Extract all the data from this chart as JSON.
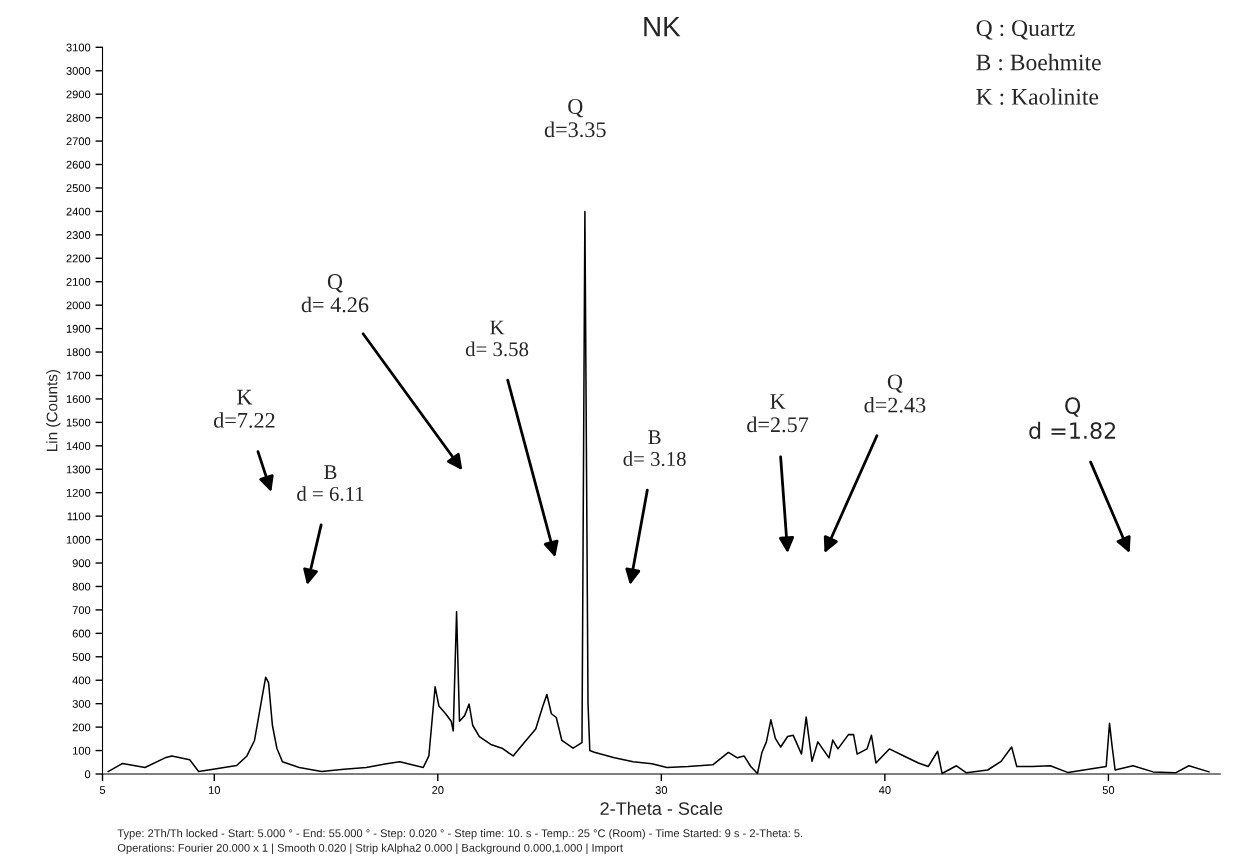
{
  "chart_data": {
    "type": "line",
    "title": "NK",
    "xlabel": "2-Theta - Scale",
    "ylabel": "Lin (Counts)",
    "xlim": [
      5,
      55
    ],
    "xticks": [
      5,
      10,
      20,
      30,
      40,
      50
    ],
    "ylim": [
      0,
      3100
    ],
    "yticks": [
      0,
      100,
      200,
      300,
      400,
      500,
      600,
      700,
      800,
      900,
      1000,
      1100,
      1200,
      1300,
      1400,
      1500,
      1600,
      1700,
      1800,
      1900,
      2000,
      2100,
      2200,
      2300,
      2400,
      2500,
      2600,
      2700,
      2800,
      2900,
      3000,
      3100
    ],
    "grid": false,
    "marker": "none",
    "line_style": "solid",
    "series": [
      {
        "color": "#000000",
        "x": [
          5.25,
          5.9,
          6.9,
          7.8,
          8.1,
          8.9,
          9.3,
          9.95,
          11.0,
          11.46,
          11.8,
          12.13,
          12.3,
          12.43,
          12.6,
          12.8,
          13.05,
          13.8,
          14.8,
          15.8,
          16.8,
          17.7,
          18.3,
          19.35,
          19.6,
          19.77,
          19.88,
          20.05,
          20.35,
          20.6,
          20.69,
          20.84,
          20.97,
          21.2,
          21.4,
          21.56,
          21.86,
          22.37,
          22.87,
          23.37,
          23.87,
          24.38,
          24.7,
          24.88,
          25.08,
          25.3,
          25.55,
          26.05,
          26.45,
          26.58,
          26.72,
          26.8,
          27.0,
          27.9,
          28.74,
          29.58,
          30.25,
          31.2,
          32.3,
          33.0,
          33.4,
          33.7,
          34.0,
          34.3,
          34.5,
          34.7,
          34.9,
          35.1,
          35.34,
          35.65,
          35.9,
          36.27,
          36.48,
          36.74,
          37.0,
          37.5,
          37.67,
          37.9,
          38.37,
          38.6,
          38.76,
          39.2,
          39.4,
          39.6,
          40.2,
          40.85,
          41.5,
          41.94,
          42.36,
          42.56,
          43.2,
          43.65,
          44.6,
          45.2,
          45.67,
          45.9,
          46.6,
          47.4,
          48.2,
          48.9,
          49.9,
          50.05,
          50.17,
          50.3,
          51.1,
          52.0,
          53.0,
          53.6,
          54.5
        ],
        "values": [
          10,
          45,
          28,
          69,
          77,
          61,
          11,
          20,
          36,
          77,
          143,
          323,
          413,
          389,
          208,
          110,
          52,
          28,
          11,
          20,
          28,
          44,
          52,
          28,
          77,
          257,
          372,
          290,
          257,
          225,
          184,
          692,
          225,
          249,
          298,
          208,
          159,
          126,
          110,
          77,
          134,
          192,
          290,
          339,
          257,
          241,
          143,
          110,
          134,
          2400,
          300,
          100,
          93,
          69,
          52,
          44,
          28,
          32,
          39,
          92,
          69,
          77,
          32,
          2,
          92,
          137,
          231,
          152,
          115,
          160,
          165,
          85,
          243,
          54,
          137,
          69,
          145,
          107,
          168,
          168,
          85,
          107,
          165,
          47,
          107,
          77,
          47,
          32,
          97,
          2,
          35,
          5,
          17,
          54,
          115,
          32,
          32,
          35,
          6,
          17,
          32,
          216,
          115,
          17,
          35,
          9,
          5,
          35,
          9
        ]
      }
    ],
    "annotations": [
      "Q : Quartz",
      "B : Boehmite",
      "K : Kaolinite",
      "K\nd=7.22",
      "B\nd = 6.11",
      "Q\nd= 4.26",
      "K\nd= 3.58",
      "Q\nd=3.35",
      "B\nd= 3.18",
      "K\nd=2.57",
      "Q\nd=2.43",
      "Q\nd =1.82",
      "Type: 2Th/Th locked - Start: 5.000 ° - End: 55.000 ° - Step: 0.020 ° - Step time: 10. s - Temp.: 25 °C (Room) - Time Started: 9 s - 2-Theta: 5.",
      "Operations: Fourier 20.000 x 1 | Smooth 0.020 | Strip kAlpha2 0.000 | Background 0.000,1.000 | Import"
    ]
  }
}
